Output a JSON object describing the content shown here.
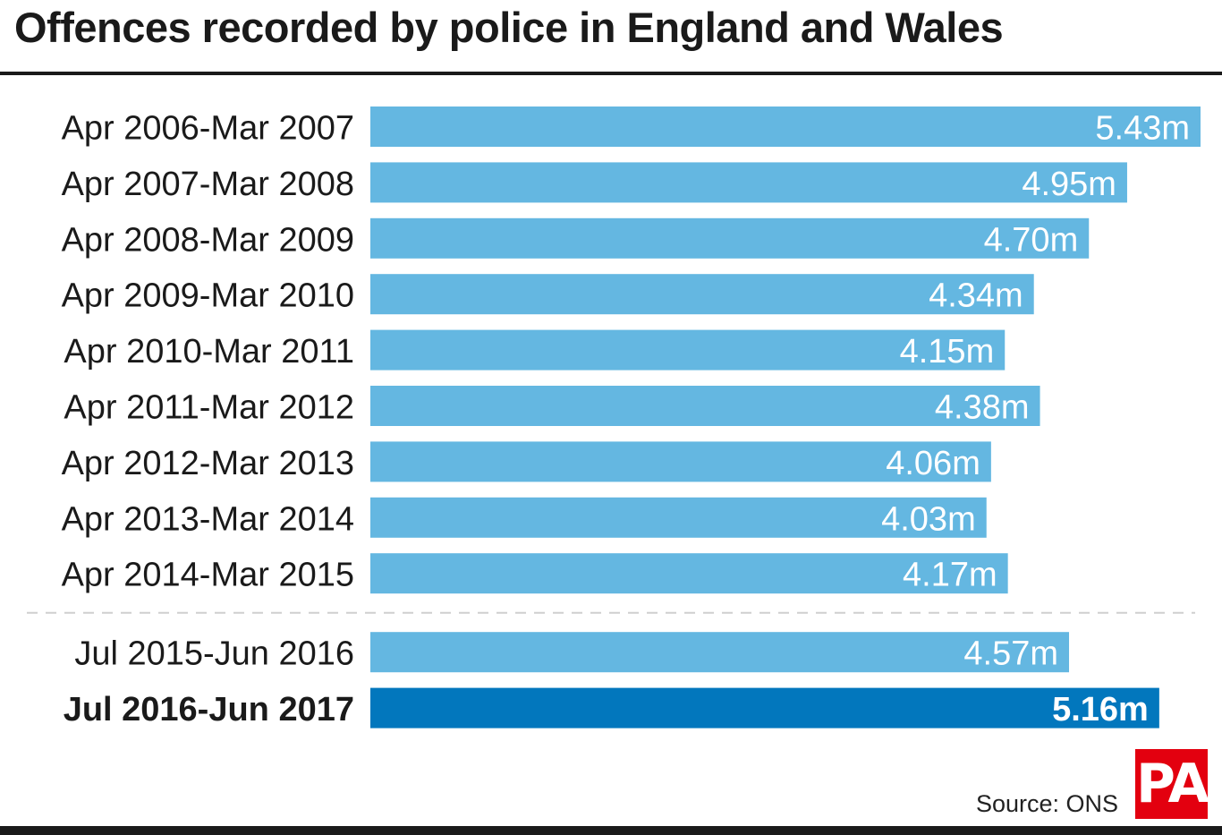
{
  "colors": {
    "bar": "#64b7e1",
    "bar_highlight": "#0277bd",
    "label_text": "#ffffff",
    "category_text": "#1a1a1a"
  },
  "footer": {
    "source": "Source: ONS",
    "logo_text": "PA"
  },
  "chart_data": {
    "type": "bar",
    "orientation": "horizontal",
    "title": "Offences recorded by police in England and Wales",
    "xlabel": "",
    "ylabel": "",
    "xlim": [
      0,
      5.43
    ],
    "grid": false,
    "legend": "none",
    "categories": [
      "Apr 2006-Mar 2007",
      "Apr 2007-Mar 2008",
      "Apr 2008-Mar 2009",
      "Apr 2009-Mar 2010",
      "Apr 2010-Mar 2011",
      "Apr 2011-Mar 2012",
      "Apr 2012-Mar 2013",
      "Apr 2013-Mar 2014",
      "Apr 2014-Mar 2015",
      "Jul 2015-Jun 2016",
      "Jul 2016-Jun 2017"
    ],
    "values": [
      5.43,
      4.95,
      4.7,
      4.34,
      4.15,
      4.38,
      4.06,
      4.03,
      4.17,
      4.57,
      5.16
    ],
    "value_labels": [
      "5.43m",
      "4.95m",
      "4.70m",
      "4.34m",
      "4.15m",
      "4.38m",
      "4.06m",
      "4.03m",
      "4.17m",
      "4.57m",
      "5.16m"
    ],
    "highlighted": [
      false,
      false,
      false,
      false,
      false,
      false,
      false,
      false,
      false,
      false,
      true
    ],
    "separator_after_index": 8
  }
}
